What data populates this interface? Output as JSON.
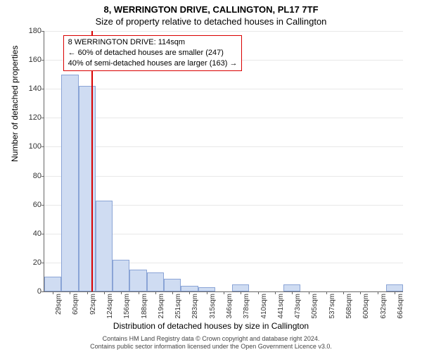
{
  "title": {
    "main": "8, WERRINGTON DRIVE, CALLINGTON, PL17 7TF",
    "sub": "Size of property relative to detached houses in Callington"
  },
  "chart": {
    "type": "histogram",
    "ylabel": "Number of detached properties",
    "xlabel": "Distribution of detached houses by size in Callington",
    "ylim": [
      0,
      180
    ],
    "ytick_step": 20,
    "bar_color": "#cfdcf2",
    "bar_border_color": "#8aa4d6",
    "grid_color": "#e8e8e8",
    "axis_color": "#666666",
    "background_color": "#ffffff",
    "marker_color": "#d90000",
    "marker_value": 114,
    "x_range": [
      29,
      680
    ],
    "categories": [
      "29sqm",
      "60sqm",
      "92sqm",
      "124sqm",
      "156sqm",
      "188sqm",
      "219sqm",
      "251sqm",
      "283sqm",
      "315sqm",
      "346sqm",
      "378sqm",
      "410sqm",
      "441sqm",
      "473sqm",
      "505sqm",
      "537sqm",
      "568sqm",
      "600sqm",
      "632sqm",
      "664sqm"
    ],
    "values": [
      10,
      150,
      142,
      63,
      22,
      15,
      13,
      9,
      4,
      3,
      0,
      5,
      0,
      0,
      5,
      0,
      0,
      0,
      0,
      0,
      5
    ],
    "label_fontsize": 12,
    "tick_fontsize": 11
  },
  "annotation": {
    "line1": "8 WERRINGTON DRIVE: 114sqm",
    "line2": "← 60% of detached houses are smaller (247)",
    "line3": "40% of semi-detached houses are larger (163) →"
  },
  "footer": {
    "line1": "Contains HM Land Registry data © Crown copyright and database right 2024.",
    "line2": "Contains public sector information licensed under the Open Government Licence v3.0."
  }
}
